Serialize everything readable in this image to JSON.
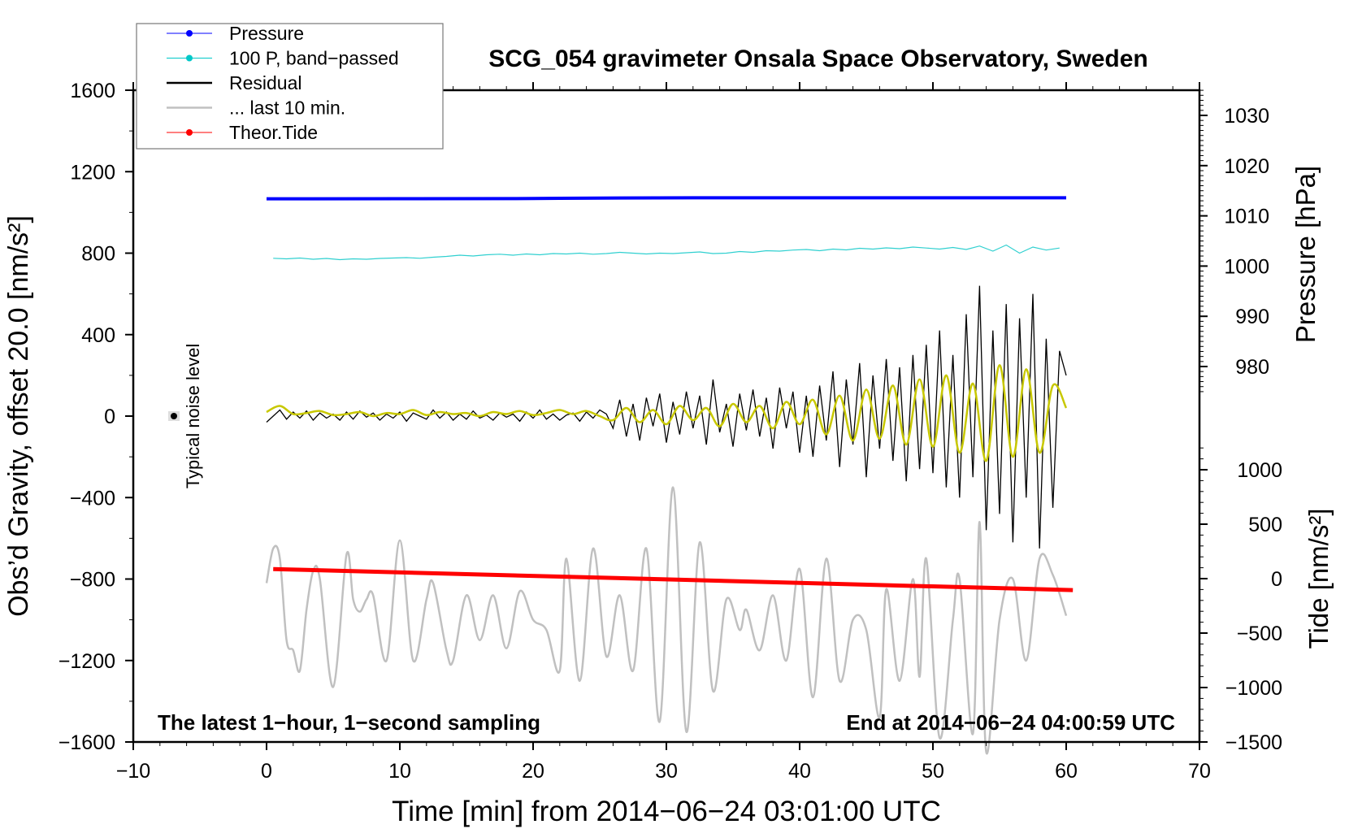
{
  "chart_data": {
    "type": "line",
    "title": "SCG_054 gravimeter Onsala Space Observatory, Sweden",
    "xlabel": "Time [min] from 2014−06−24 03:01:00 UTC",
    "ylabel": "Obs’d Gravity, offset 20.0 [nm/s²]",
    "ylabel_right_top": "Pressure [hPa]",
    "ylabel_right_bottom": "Tide [nm/s²]",
    "xlim": [
      -10,
      70
    ],
    "ylim": [
      -1600,
      1600
    ],
    "pressure_lim_ticks": [
      980,
      990,
      1000,
      1010,
      1020,
      1030
    ],
    "tide_ticks": [
      -1500,
      -1000,
      -500,
      0,
      500,
      1000
    ],
    "x_ticks": [
      -10,
      0,
      10,
      20,
      30,
      40,
      50,
      60,
      70
    ],
    "x_tick_labels": [
      "−10",
      "0",
      "10",
      "20",
      "30",
      "40",
      "50",
      "60",
      "70"
    ],
    "y_ticks": [
      -1600,
      -1200,
      -800,
      -400,
      0,
      400,
      800,
      1200,
      1600
    ],
    "y_tick_labels": [
      "−1600",
      "−1200",
      "−800",
      "−400",
      "0",
      "400",
      "800",
      "1200",
      "1600"
    ],
    "tide_tick_labels": [
      "−1500",
      "−1000",
      "−500",
      "0",
      "500",
      "1000"
    ],
    "pressure_tick_labels": [
      "980",
      "990",
      "1000",
      "1010",
      "1020",
      "1030"
    ],
    "legend_position": "top-left",
    "legend": [
      {
        "label": "Pressure",
        "color": "#0000ff",
        "marker": true
      },
      {
        "label": "100 P, band−passed",
        "color": "#00c8c8",
        "marker": true
      },
      {
        "label": "Residual",
        "color": "#000000",
        "marker": false
      },
      {
        "label": "... last 10 min.",
        "color": "#c0c0c0",
        "marker": false
      },
      {
        "label": "Theor.Tide",
        "color": "#ff0000",
        "marker": true
      }
    ],
    "annotations": {
      "left_bottom": "The latest 1−hour, 1−second sampling",
      "right_bottom": "End at 2014−06−24 04:00:59 UTC",
      "noise_label": "Typical noise level"
    },
    "noise_level": {
      "x": -7,
      "y": 0,
      "err": 20
    },
    "series": {
      "pressure": {
        "axis": "pressure",
        "color": "#0000ff",
        "x": [
          0,
          10,
          20,
          22,
          25,
          32,
          40,
          50,
          60
        ],
        "y": [
          1013.4,
          1013.42,
          1013.45,
          1013.5,
          1013.55,
          1013.6,
          1013.6,
          1013.6,
          1013.6
        ]
      },
      "band_passed": {
        "axis": "left",
        "color": "#30d0d0",
        "x0": 0.5,
        "dx": 1,
        "y": [
          775,
          772,
          776,
          770,
          774,
          768,
          772,
          770,
          774,
          776,
          778,
          775,
          780,
          784,
          790,
          786,
          792,
          795,
          790,
          796,
          792,
          798,
          796,
          800,
          795,
          798,
          804,
          800,
          796,
          800,
          798,
          802,
          806,
          798,
          800,
          808,
          804,
          812,
          810,
          815,
          818,
          812,
          820,
          816,
          824,
          820,
          826,
          822,
          830,
          825,
          820,
          828,
          818,
          835,
          810,
          840,
          800,
          830,
          815,
          825
        ],
        "noise_grow": true
      },
      "residual": {
        "axis": "left",
        "color": "#000000",
        "x0": 0,
        "dx": 0.5,
        "y": [
          -30,
          0,
          30,
          -15,
          20,
          -10,
          25,
          -20,
          15,
          -10,
          10,
          -20,
          20,
          -15,
          25,
          -5,
          15,
          -20,
          10,
          -10,
          20,
          -25,
          15,
          0,
          -15,
          30,
          -10,
          20,
          -20,
          10,
          -15,
          25,
          -10,
          5,
          -20,
          15,
          -5,
          10,
          -25,
          20,
          -10,
          30,
          -15,
          10,
          -20,
          5,
          15,
          -25,
          20,
          -10,
          30,
          10,
          -60,
          80,
          -100,
          60,
          -120,
          90,
          -50,
          110,
          -130,
          70,
          -90,
          120,
          -60,
          100,
          -140,
          180,
          -80,
          60,
          -150,
          110,
          -70,
          130,
          -100,
          90,
          -160,
          140,
          -60,
          120,
          -180,
          100,
          -200,
          150,
          -120,
          220,
          -250,
          180,
          -140,
          260,
          -300,
          200,
          -160,
          280,
          -220,
          240,
          -320,
          300,
          -260,
          350,
          -280,
          420,
          -350,
          300,
          -400,
          500,
          -300,
          640,
          -560,
          420,
          -480,
          550,
          -620,
          480,
          -400,
          600,
          -650,
          380,
          -450,
          320,
          200
        ]
      },
      "smoothed": {
        "axis": "left",
        "color": "#c8c800",
        "x0": 0,
        "dx": 1,
        "y": [
          20,
          50,
          10,
          15,
          25,
          5,
          10,
          20,
          0,
          15,
          10,
          30,
          5,
          20,
          10,
          15,
          0,
          20,
          10,
          25,
          5,
          15,
          30,
          10,
          25,
          0,
          -20,
          40,
          -30,
          30,
          -40,
          50,
          -20,
          40,
          -50,
          60,
          -30,
          50,
          -60,
          70,
          -40,
          80,
          -90,
          100,
          -120,
          130,
          -110,
          150,
          -140,
          180,
          -150,
          200,
          -180,
          160,
          -220,
          250,
          -200,
          230,
          -180,
          150,
          40
        ]
      },
      "last_10_min": {
        "axis": "left",
        "color": "#c0c0c0",
        "x": [
          0,
          0.5,
          1,
          1.5,
          2,
          2.5,
          3,
          3.5,
          4,
          5,
          6,
          6.5,
          7,
          7.5,
          8,
          9,
          10,
          11,
          12,
          12.5,
          13.5,
          14,
          15,
          16,
          17,
          18,
          19,
          20,
          21,
          22,
          22.5,
          23.5,
          24.5,
          25.5,
          26.5,
          27.5,
          28.5,
          29.5,
          30.5,
          31.5,
          32.5,
          33.5,
          34.5,
          35.5,
          36,
          37,
          38,
          39,
          40,
          41,
          42,
          43,
          44,
          45,
          46,
          46.5,
          47.5,
          48.5,
          49,
          49.5,
          50.5,
          51.5,
          52,
          53,
          53.5,
          54,
          55,
          56,
          57,
          58,
          59,
          60
        ],
        "y": [
          -820,
          -650,
          -700,
          -1100,
          -1150,
          -1250,
          -950,
          -760,
          -800,
          -1330,
          -680,
          -900,
          -960,
          -900,
          -880,
          -1200,
          -610,
          -1200,
          -900,
          -820,
          -1150,
          -1200,
          -880,
          -1100,
          -880,
          -1140,
          -860,
          -1000,
          -1050,
          -1250,
          -700,
          -1300,
          -650,
          -1180,
          -880,
          -1250,
          -650,
          -1500,
          -350,
          -1550,
          -620,
          -1350,
          -900,
          -1050,
          -950,
          -1150,
          -880,
          -1200,
          -750,
          -1380,
          -700,
          -1300,
          -1000,
          -1050,
          -1480,
          -850,
          -1300,
          -800,
          -1280,
          -700,
          -1580,
          -1000,
          -800,
          -1560,
          -520,
          -1650,
          -1000,
          -800,
          -1200,
          -700,
          -780,
          -980
        ]
      },
      "theor_tide": {
        "axis": "tide",
        "color": "#ff0000",
        "x": [
          0.5,
          60.5
        ],
        "y": [
          88,
          -105
        ]
      }
    }
  }
}
